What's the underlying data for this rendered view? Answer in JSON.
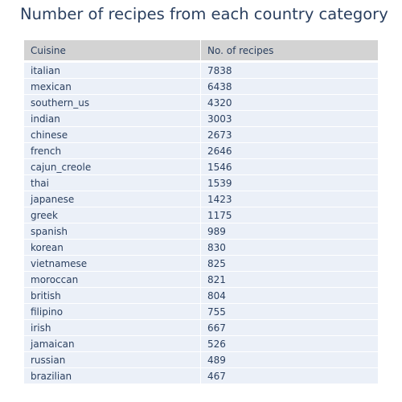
{
  "chart_data": {
    "type": "table",
    "title": "Number of recipes from each country category",
    "columns": [
      "Cuisine",
      "No. of recipes"
    ],
    "rows": [
      [
        "italian",
        7838
      ],
      [
        "mexican",
        6438
      ],
      [
        "southern_us",
        4320
      ],
      [
        "indian",
        3003
      ],
      [
        "chinese",
        2673
      ],
      [
        "french",
        2646
      ],
      [
        "cajun_creole",
        1546
      ],
      [
        "thai",
        1539
      ],
      [
        "japanese",
        1423
      ],
      [
        "greek",
        1175
      ],
      [
        "spanish",
        989
      ],
      [
        "korean",
        830
      ],
      [
        "vietnamese",
        825
      ],
      [
        "moroccan",
        821
      ],
      [
        "british",
        804
      ],
      [
        "filipino",
        755
      ],
      [
        "irish",
        667
      ],
      [
        "jamaican",
        526
      ],
      [
        "russian",
        489
      ],
      [
        "brazilian",
        467
      ]
    ]
  },
  "colors": {
    "header_fill": "#d3d3d3",
    "cell_fill": "#ebf0f8",
    "text": "#2a3f5f"
  }
}
